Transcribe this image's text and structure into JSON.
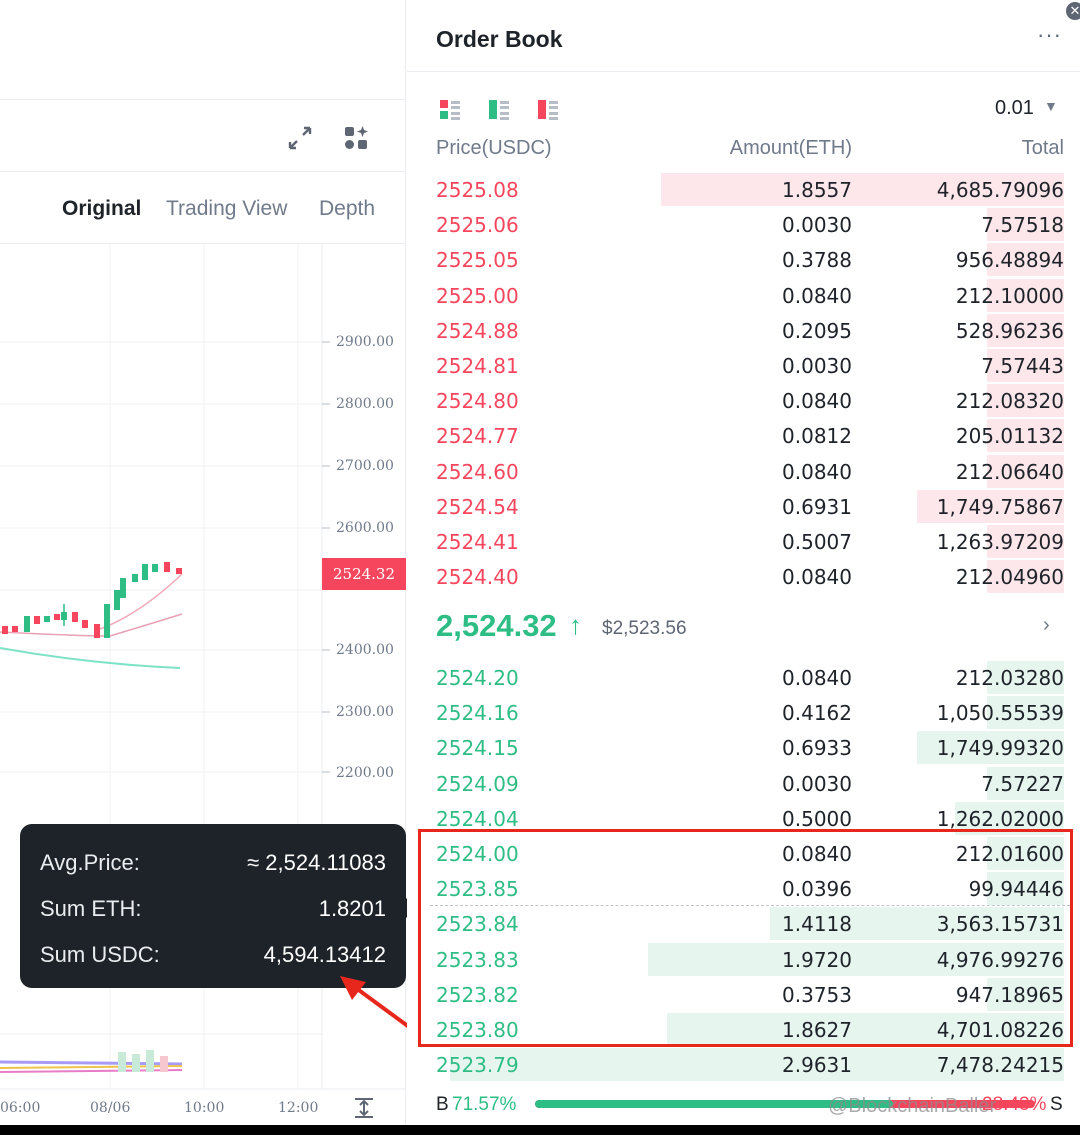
{
  "chart": {
    "tabs": [
      "Original",
      "Trading View",
      "Depth"
    ],
    "active_tab": "Original",
    "y_ticks": [
      "2900.00",
      "2800.00",
      "2700.00",
      "2600.00",
      "2400.00",
      "2300.00",
      "2200.00"
    ],
    "x_ticks": [
      "06:00",
      "08/06",
      "10:00",
      "12:00"
    ],
    "last_price": "2524.32",
    "icons": [
      "expand-icon",
      "indicator-settings-icon",
      "axis-fit-icon"
    ]
  },
  "tooltip": {
    "avg_label": "Avg.Price:",
    "avg_value": "≈ 2,524.11083",
    "sum_eth_label": "Sum ETH:",
    "sum_eth_value": "1.8201",
    "sum_usdc_label": "Sum USDC:",
    "sum_usdc_value": "4,594.13412"
  },
  "orderbook": {
    "title": "Order Book",
    "more": "···",
    "close": "✕",
    "tick_size": "0.01",
    "tick_caret": "▼",
    "headers": {
      "price": "Price(USDC)",
      "amount": "Amount(ETH)",
      "total": "Total"
    },
    "asks": [
      {
        "price": "2525.08",
        "amount": "1.8557",
        "total": "4,685.79096",
        "depth": 0.63
      },
      {
        "price": "2525.06",
        "amount": "0.0030",
        "total": "7.57518",
        "depth": 0.12
      },
      {
        "price": "2525.05",
        "amount": "0.3788",
        "total": "956.48894",
        "depth": 0.12
      },
      {
        "price": "2525.00",
        "amount": "0.0840",
        "total": "212.10000",
        "depth": 0.12
      },
      {
        "price": "2524.88",
        "amount": "0.2095",
        "total": "528.96236",
        "depth": 0.12
      },
      {
        "price": "2524.81",
        "amount": "0.0030",
        "total": "7.57443",
        "depth": 0.12
      },
      {
        "price": "2524.80",
        "amount": "0.0840",
        "total": "212.08320",
        "depth": 0.12
      },
      {
        "price": "2524.77",
        "amount": "0.0812",
        "total": "205.01132",
        "depth": 0.12
      },
      {
        "price": "2524.60",
        "amount": "0.0840",
        "total": "212.06640",
        "depth": 0.12
      },
      {
        "price": "2524.54",
        "amount": "0.6931",
        "total": "1,749.75867",
        "depth": 0.23
      },
      {
        "price": "2524.41",
        "amount": "0.5007",
        "total": "1,263.97209",
        "depth": 0.12
      },
      {
        "price": "2524.40",
        "amount": "0.0840",
        "total": "212.04960",
        "depth": 0.12
      }
    ],
    "mid": {
      "price": "2,524.32",
      "arrow": "↑",
      "fiat": "$2,523.56",
      "chevron": "›"
    },
    "bids": [
      {
        "price": "2524.20",
        "amount": "0.0840",
        "total": "212.03280",
        "depth": 0.12
      },
      {
        "price": "2524.16",
        "amount": "0.4162",
        "total": "1,050.55539",
        "depth": 0.12
      },
      {
        "price": "2524.15",
        "amount": "0.6933",
        "total": "1,749.99320",
        "depth": 0.23
      },
      {
        "price": "2524.09",
        "amount": "0.0030",
        "total": "7.57227",
        "depth": 0.12
      },
      {
        "price": "2524.04",
        "amount": "0.5000",
        "total": "1,262.02000",
        "depth": 0.17
      },
      {
        "price": "2524.00",
        "amount": "0.0840",
        "total": "212.01600",
        "depth": 0.12
      },
      {
        "price": "2523.85",
        "amount": "0.0396",
        "total": "99.94446",
        "depth": 0.12
      },
      {
        "price": "2523.84",
        "amount": "1.4118",
        "total": "3,563.15731",
        "depth": 0.46
      },
      {
        "price": "2523.83",
        "amount": "1.9720",
        "total": "4,976.99276",
        "depth": 0.65
      },
      {
        "price": "2523.82",
        "amount": "0.3753",
        "total": "947.18965",
        "depth": 0.12
      },
      {
        "price": "2523.80",
        "amount": "1.8627",
        "total": "4,701.08226",
        "depth": 0.62
      },
      {
        "price": "2523.79",
        "amount": "2.9631",
        "total": "7,478.24215",
        "depth": 0.96
      }
    ],
    "ratio": {
      "b_label": "B",
      "b_value": "71.57%",
      "s_value": "28.43%",
      "s_label": "S",
      "buy_fraction": 0.7157
    },
    "watermark": "@BlockchainBaller"
  },
  "colors": {
    "ask": "#f6465d",
    "bid": "#2ebd85",
    "highlight": "#e8271c"
  }
}
